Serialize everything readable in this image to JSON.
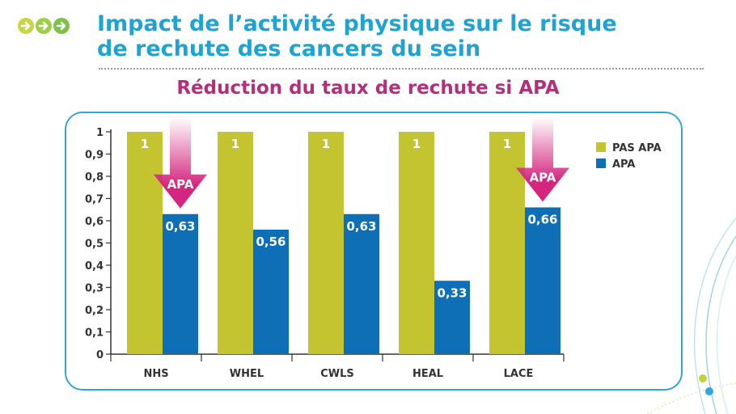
{
  "header": {
    "title_line1": "Impact de l’activité physique sur le risque",
    "title_line2": "de rechute des cancers du sein",
    "subtitle": "Réduction du taux de rechute si APA"
  },
  "colors": {
    "title": "#1fa3d3",
    "subtitle": "#b22f7d",
    "pas_apa": "#c4c431",
    "apa": "#0e6fb7",
    "arrow": "#d4267f",
    "panel_border": "#31a6d4",
    "bullet_1": "#c8d544",
    "bullet_2": "#9ccf45",
    "bullet_3": "#7cc246"
  },
  "chart_data": {
    "type": "bar",
    "categories": [
      "NHS",
      "WHEL",
      "CWLS",
      "HEAL",
      "LACE"
    ],
    "series": [
      {
        "name": "PAS APA",
        "values": [
          1,
          1,
          1,
          1,
          1
        ],
        "labels": [
          "1",
          "1",
          "1",
          "1",
          "1"
        ]
      },
      {
        "name": "APA",
        "values": [
          0.63,
          0.56,
          0.63,
          0.33,
          0.66
        ],
        "labels": [
          "0,63",
          "0,56",
          "0,63",
          "0,33",
          "0,66"
        ]
      }
    ],
    "y_ticks": [
      "0",
      "0,1",
      "0,2",
      "0,3",
      "0,4",
      "0,5",
      "0,6",
      "0,7",
      "0,8",
      "0,9",
      "1"
    ],
    "ylim": [
      0,
      1
    ],
    "legend_position": "top-right",
    "annotations": [
      {
        "text": "APA",
        "category": "NHS",
        "pointing_to": "APA"
      },
      {
        "text": "APA",
        "category": "LACE",
        "pointing_to": "APA"
      }
    ]
  }
}
